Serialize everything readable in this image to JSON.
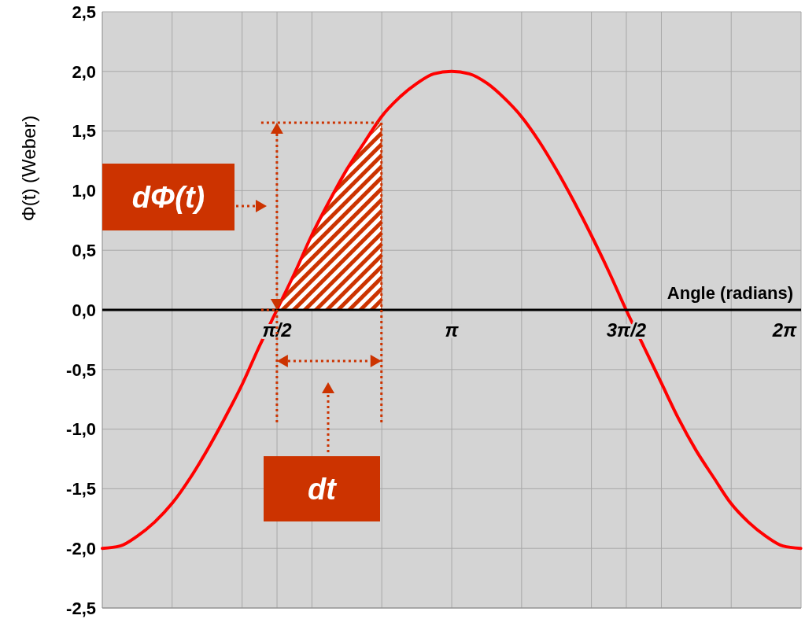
{
  "chart_data": {
    "type": "line",
    "xlabel": "Angle (radians)",
    "ylabel": "Φ(t) (Weber)",
    "xlim": [
      0,
      6.283
    ],
    "ylim": [
      -2.5,
      2.5
    ],
    "xticks": [
      {
        "value": 0.628,
        "label": null
      },
      {
        "value": 1.257,
        "label": null
      },
      {
        "value": 1.571,
        "label": "π/2"
      },
      {
        "value": 1.885,
        "label": null
      },
      {
        "value": 2.513,
        "label": null
      },
      {
        "value": 3.142,
        "label": "π"
      },
      {
        "value": 3.77,
        "label": null
      },
      {
        "value": 4.398,
        "label": null
      },
      {
        "value": 4.712,
        "label": "3π/2"
      },
      {
        "value": 5.027,
        "label": null
      },
      {
        "value": 5.655,
        "label": null
      },
      {
        "value": 6.283,
        "label": "2π"
      }
    ],
    "yticks": [
      {
        "value": -2.5,
        "label": "-2,5"
      },
      {
        "value": -2,
        "label": "-2,0"
      },
      {
        "value": -1.5,
        "label": "-1,5"
      },
      {
        "value": -1,
        "label": "-1,0"
      },
      {
        "value": -0.5,
        "label": "-0,5"
      },
      {
        "value": 0,
        "label": "0,0"
      },
      {
        "value": 0.5,
        "label": "0,5"
      },
      {
        "value": 1,
        "label": "1,0"
      },
      {
        "value": 1.5,
        "label": "1,5"
      },
      {
        "value": 2,
        "label": "2,0"
      },
      {
        "value": 2.5,
        "label": "2,5"
      }
    ],
    "grid": true,
    "marker": "none",
    "line_style": "solid",
    "series": [
      {
        "type": "area",
        "color": "#cc3300",
        "x": [
          1.57,
          1.73,
          1.88,
          2.04,
          2.2,
          2.36,
          2.51
        ],
        "values": [
          0,
          0.31,
          0.62,
          0.91,
          1.18,
          1.41,
          1.57
        ]
      },
      {
        "color": "#ff0000",
        "x": [
          0,
          0.16,
          0.31,
          0.47,
          0.63,
          0.79,
          0.94,
          1.1,
          1.26,
          1.41,
          1.57,
          1.73,
          1.88,
          2.04,
          2.2,
          2.36,
          2.51,
          2.67,
          2.83,
          2.98,
          3.14,
          3.3,
          3.46,
          3.61,
          3.77,
          3.93,
          4.08,
          4.24,
          4.4,
          4.56,
          4.71,
          4.87,
          5.03,
          5.18,
          5.34,
          5.5,
          5.65,
          5.81,
          5.97,
          6.12,
          6.28
        ],
        "values": [
          -2,
          -1.98,
          -1.9,
          -1.78,
          -1.62,
          -1.41,
          -1.18,
          -0.91,
          -0.62,
          -0.31,
          0,
          0.31,
          0.62,
          0.91,
          1.18,
          1.41,
          1.62,
          1.78,
          1.9,
          1.98,
          2,
          1.98,
          1.9,
          1.78,
          1.62,
          1.41,
          1.18,
          0.91,
          0.62,
          0.31,
          0,
          -0.31,
          -0.62,
          -0.91,
          -1.18,
          -1.41,
          -1.62,
          -1.78,
          -1.9,
          -1.98,
          -2
        ]
      }
    ],
    "annotations": [
      "dΦ(t)",
      "dt"
    ]
  }
}
